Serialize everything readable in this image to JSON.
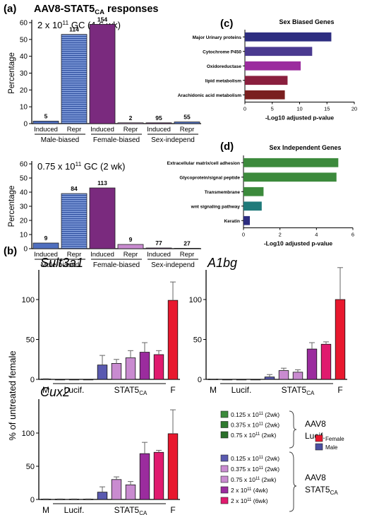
{
  "panel_labels": {
    "a": "(a)",
    "b": "(b)",
    "c": "(c)",
    "d": "(d)"
  },
  "main_title": {
    "text": "AAV8-STAT5",
    "sub": "CA",
    "tail": " responses"
  },
  "colors": {
    "blue": "#4f6fbf",
    "purple": "#7a2a7e",
    "navy": "#2d2d80",
    "indigo": "#4a3a90",
    "magenta": "#9b2c9e",
    "maroon": "#8a1f3e",
    "darkred": "#7a1f1f",
    "green": "#3c8a3c",
    "teal": "#1f7a7a",
    "lightpurple": "#c98bd0",
    "pink": "#d44f9f",
    "hotpink": "#e01a6e",
    "female": "#e8182e",
    "male": "#4a4fa0"
  },
  "chart_data": [
    {
      "id": "a1",
      "type": "bar",
      "title": {
        "pre": "2 x 10",
        "sup": "11",
        "post": " GC (4-6 wk)"
      },
      "ylabel": "Percentage",
      "ylim": [
        0,
        60
      ],
      "yticks": [
        "0",
        "10",
        "20",
        "30",
        "40",
        "50",
        "60"
      ],
      "categories": [
        "Induced",
        "Repr",
        "Induced",
        "Repr",
        "Induced",
        "Repr"
      ],
      "values": [
        1.5,
        53,
        59,
        0.5,
        0.5,
        1
      ],
      "labels": [
        "5",
        "114",
        "154",
        "2",
        "95",
        "55"
      ],
      "groups": [
        "Male-biased",
        "Female-biased",
        "Sex-independ"
      ]
    },
    {
      "id": "a2",
      "type": "bar",
      "title": {
        "pre": "0.75 x 10",
        "sup": "11",
        "post": " GC (2 wk)"
      },
      "ylabel": "Percentage",
      "ylim": [
        0,
        60
      ],
      "yticks": [
        "0",
        "10",
        "20",
        "30",
        "40",
        "50",
        "60"
      ],
      "categories": [
        "Induced",
        "Repr",
        "Induced",
        "Repr",
        "Induced",
        "Repr"
      ],
      "values": [
        4,
        39,
        43,
        3,
        0.5,
        0.3
      ],
      "labels": [
        "9",
        "84",
        "113",
        "9",
        "77",
        "27"
      ],
      "groups": [
        "Male-biased",
        "Female-biased",
        "Sex-independ"
      ]
    },
    {
      "id": "c",
      "type": "bar",
      "title": "Sex Biased Genes",
      "xlabel": "-Log10 adjusted p-value",
      "xlim": [
        0,
        20
      ],
      "xticks": [
        "0",
        "5",
        "10",
        "15",
        "20"
      ],
      "categories": [
        "Major Urinary proteins",
        "Cytochrome P450",
        "Oxidoreductase",
        "lipid metabolism",
        "Arachidonic acid metabolism"
      ],
      "values": [
        15.8,
        12.3,
        10.2,
        7.8,
        7.3
      ]
    },
    {
      "id": "d",
      "type": "bar",
      "title": "Sex Independent Genes",
      "xlabel": "-Log10 adjusted p-value",
      "xlim": [
        0,
        6
      ],
      "xticks": [
        "0",
        "2",
        "4",
        "6"
      ],
      "categories": [
        "Extracellular matrix/cell adhesion",
        "Glycoprotein/signal peptide",
        "Transmembrane",
        "wnt signaling pathway",
        "Keratin"
      ],
      "values": [
        5.2,
        5.1,
        1.1,
        1.0,
        0.35
      ]
    },
    {
      "id": "b1",
      "type": "bar",
      "title": "Sult3a1",
      "ylim": [
        0,
        120
      ],
      "yticks": [
        "0",
        "50",
        "100"
      ],
      "values": [
        0.5,
        0,
        0,
        0,
        18,
        20,
        27,
        34,
        31,
        99
      ],
      "errors": [
        0.3,
        0,
        0,
        0,
        12,
        5,
        9,
        12,
        5,
        23
      ]
    },
    {
      "id": "b2",
      "type": "bar",
      "title": "A1bg",
      "ylim": [
        0,
        140
      ],
      "yticks": [
        "0",
        "50",
        "100"
      ],
      "values": [
        0.3,
        0,
        0,
        0,
        3,
        11,
        9,
        38,
        44,
        100
      ],
      "errors": [
        0.2,
        0,
        0,
        0,
        3,
        3,
        3,
        8,
        3,
        40
      ]
    },
    {
      "id": "b3",
      "type": "bar",
      "title": "Cux2",
      "ylim": [
        0,
        140
      ],
      "yticks": [
        "0",
        "50",
        "100"
      ],
      "ylabel": "% of untreated female",
      "values": [
        0.5,
        0.5,
        0.5,
        0.5,
        11,
        30,
        22,
        69,
        71,
        99
      ],
      "errors": [
        0.3,
        0.3,
        0.3,
        0.3,
        8,
        4,
        5,
        17,
        3,
        36
      ]
    }
  ],
  "b_xlabels": {
    "m": "M",
    "lucif": "Lucif.",
    "stat": "STAT5",
    "stat_sub": "CA",
    "f": "F"
  },
  "legend": {
    "aav8_lucif": [
      {
        "pre": "0.125 x 10",
        "sup": "11",
        "post": " (2wk)"
      },
      {
        "pre": "0.375 x 10",
        "sup": "11",
        "post": " (2wk)"
      },
      {
        "pre": "0.75 x 10",
        "sup": "11",
        "post": " (2wk)"
      }
    ],
    "aav8_stat": [
      {
        "pre": "0.125 x 10",
        "sup": "11",
        "post": " (2wk)"
      },
      {
        "pre": "0.375 x 10",
        "sup": "11",
        "post": " (2wk)"
      },
      {
        "pre": "0.75 x 10",
        "sup": "11",
        "post": " (2wk)"
      },
      {
        "pre": "2 x 10",
        "sup": "11",
        "post": " (4wk)"
      },
      {
        "pre": "2 x 10",
        "sup": "11",
        "post": " (6wk)"
      }
    ],
    "group_lucif": [
      "AAV8",
      "Lucif."
    ],
    "group_stat": [
      "AAV8",
      "STAT5",
      "CA"
    ],
    "sex": [
      "Female",
      "Male"
    ]
  }
}
